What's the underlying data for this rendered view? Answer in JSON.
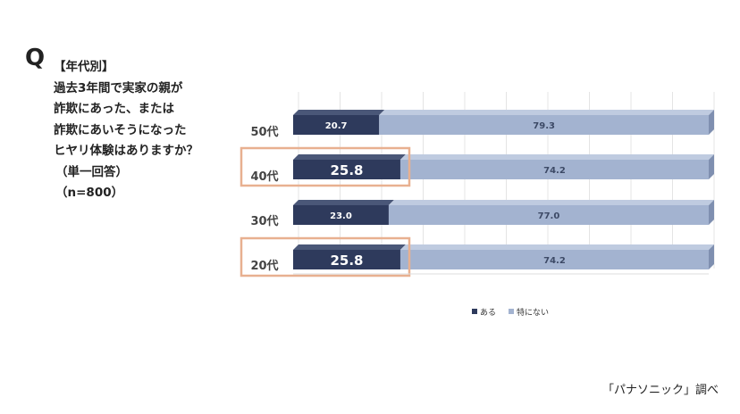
{
  "question": {
    "mark": "Q",
    "lines": [
      "【年代別】",
      "過去3年間で実家の親が",
      "詐欺にあった、または",
      "詐欺にあいそうになった",
      "ヒヤリ体験はありますか？",
      "（単一回答）",
      "（n=800）"
    ]
  },
  "chart_data": {
    "type": "bar",
    "orientation": "horizontal",
    "stacked": true,
    "percent": true,
    "categories": [
      "50代",
      "40代",
      "30代",
      "20代"
    ],
    "series": [
      {
        "name": "ある",
        "values": [
          20.7,
          25.8,
          23.0,
          25.8
        ],
        "color": "#2e3a5c"
      },
      {
        "name": "特にない",
        "values": [
          79.3,
          74.2,
          77.0,
          74.2
        ],
        "color": "#a3b3d0"
      }
    ],
    "value_labels": {
      "ある": [
        "20.7",
        "25.8",
        "23.0",
        "25.8"
      ],
      "特にない": [
        "79.3",
        "74.2",
        "77.0",
        "74.2"
      ]
    },
    "highlighted_categories": [
      "40代",
      "20代"
    ],
    "highlight_color": "#e8b090",
    "xlim": [
      0,
      100
    ],
    "grid": true,
    "legend": "bottom"
  },
  "source": "「パナソニック」調べ"
}
